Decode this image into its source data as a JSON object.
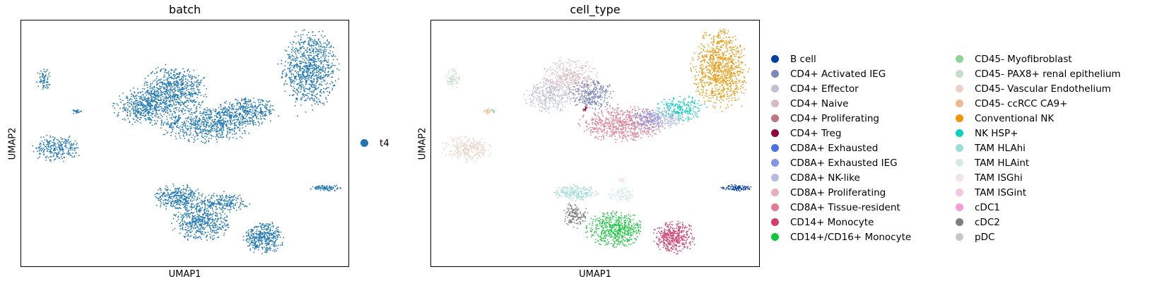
{
  "chart_data": [
    {
      "type": "scatter",
      "title": "batch",
      "xlabel": "UMAP1",
      "ylabel": "UMAP2",
      "ticks": "none",
      "legend": {
        "placement": "right",
        "entries": [
          {
            "label": "t4",
            "color": "#1f77b4"
          }
        ]
      },
      "clusters": [
        {
          "label": "t4",
          "cx": 0.88,
          "cy": 0.8,
          "rx": 0.08,
          "ry": 0.15,
          "n": 900
        },
        {
          "label": "t4",
          "cx": 0.57,
          "cy": 0.58,
          "rx": 0.14,
          "ry": 0.07,
          "n": 700
        },
        {
          "label": "t4",
          "cx": 0.47,
          "cy": 0.72,
          "rx": 0.09,
          "ry": 0.09,
          "n": 650
        },
        {
          "label": "t4",
          "cx": 0.38,
          "cy": 0.65,
          "rx": 0.09,
          "ry": 0.07,
          "n": 500
        },
        {
          "label": "t4",
          "cx": 0.69,
          "cy": 0.63,
          "rx": 0.09,
          "ry": 0.05,
          "n": 380
        },
        {
          "label": "t4",
          "cx": 0.11,
          "cy": 0.48,
          "rx": 0.07,
          "ry": 0.05,
          "n": 260
        },
        {
          "label": "t4",
          "cx": 0.07,
          "cy": 0.76,
          "rx": 0.022,
          "ry": 0.04,
          "n": 70
        },
        {
          "label": "t4",
          "cx": 0.93,
          "cy": 0.32,
          "rx": 0.045,
          "ry": 0.012,
          "n": 90
        },
        {
          "label": "t4",
          "cx": 0.55,
          "cy": 0.18,
          "rx": 0.08,
          "ry": 0.07,
          "n": 500
        },
        {
          "label": "t4",
          "cx": 0.74,
          "cy": 0.12,
          "rx": 0.06,
          "ry": 0.06,
          "n": 400
        },
        {
          "label": "t4",
          "cx": 0.48,
          "cy": 0.28,
          "rx": 0.07,
          "ry": 0.05,
          "n": 350
        },
        {
          "label": "t4",
          "cx": 0.62,
          "cy": 0.26,
          "rx": 0.07,
          "ry": 0.04,
          "n": 220
        },
        {
          "label": "t4",
          "cx": 0.17,
          "cy": 0.63,
          "rx": 0.02,
          "ry": 0.01,
          "n": 25
        }
      ]
    },
    {
      "type": "scatter",
      "title": "cell_type",
      "xlabel": "UMAP1",
      "ylabel": "UMAP2",
      "ticks": "none",
      "legend": {
        "placement": "right",
        "columns": 2,
        "entries": [
          {
            "label": "B cell",
            "color": "#023fa5"
          },
          {
            "label": "CD4+ Activated IEG",
            "color": "#7d87b9"
          },
          {
            "label": "CD4+ Effector",
            "color": "#bec1d4"
          },
          {
            "label": "CD4+ Naive",
            "color": "#d6bcc0"
          },
          {
            "label": "CD4+ Proliferating",
            "color": "#bb7784"
          },
          {
            "label": "CD4+ Treg",
            "color": "#8e063b"
          },
          {
            "label": "CD8A+ Exhausted",
            "color": "#4a6fe3"
          },
          {
            "label": "CD8A+ Exhausted IEG",
            "color": "#8595e1"
          },
          {
            "label": "CD8A+ NK-like",
            "color": "#b5bbe3"
          },
          {
            "label": "CD8A+ Proliferating",
            "color": "#e6afb9"
          },
          {
            "label": "CD8A+ Tissue-resident",
            "color": "#e07b91"
          },
          {
            "label": "CD14+ Monocyte",
            "color": "#d33f6a"
          },
          {
            "label": "CD14+/CD16+ Monocyte",
            "color": "#11c638"
          },
          {
            "label": "CD45- Myofibroblast",
            "color": "#8dd593"
          },
          {
            "label": "CD45- PAX8+ renal epithelium",
            "color": "#c6dec7"
          },
          {
            "label": "CD45- Vascular Endothelium",
            "color": "#ead3c6"
          },
          {
            "label": "CD45- ccRCC CA9+",
            "color": "#f0b98d"
          },
          {
            "label": "Conventional NK",
            "color": "#ef9708"
          },
          {
            "label": "NK HSP+",
            "color": "#0fcfc0"
          },
          {
            "label": "TAM HLAhi",
            "color": "#9cded6"
          },
          {
            "label": "TAM HLAint",
            "color": "#d5eae7"
          },
          {
            "label": "TAM ISGhi",
            "color": "#f3e1eb"
          },
          {
            "label": "TAM ISGint",
            "color": "#f6c4e1"
          },
          {
            "label": "cDC1",
            "color": "#f79cd4"
          },
          {
            "label": "cDC2",
            "color": "#7f7f7f"
          },
          {
            "label": "pDC",
            "color": "#c7c7c7"
          }
        ]
      },
      "clusters": [
        {
          "label": "Conventional NK",
          "cx": 0.88,
          "cy": 0.8,
          "rx": 0.08,
          "ry": 0.15,
          "n": 900
        },
        {
          "label": "NK HSP+",
          "cx": 0.76,
          "cy": 0.64,
          "rx": 0.07,
          "ry": 0.05,
          "n": 220
        },
        {
          "label": "CD8A+ Tissue-resident",
          "cx": 0.58,
          "cy": 0.58,
          "rx": 0.12,
          "ry": 0.07,
          "n": 650
        },
        {
          "label": "CD4+ Naive",
          "cx": 0.42,
          "cy": 0.76,
          "rx": 0.08,
          "ry": 0.08,
          "n": 400
        },
        {
          "label": "CD4+ Effector",
          "cx": 0.36,
          "cy": 0.69,
          "rx": 0.07,
          "ry": 0.06,
          "n": 300
        },
        {
          "label": "CD4+ Activated IEG",
          "cx": 0.49,
          "cy": 0.7,
          "rx": 0.06,
          "ry": 0.06,
          "n": 300
        },
        {
          "label": "CD8A+ Exhausted IEG",
          "cx": 0.66,
          "cy": 0.6,
          "rx": 0.05,
          "ry": 0.04,
          "n": 150
        },
        {
          "label": "CD8A+ NK-like",
          "cx": 0.72,
          "cy": 0.6,
          "rx": 0.05,
          "ry": 0.04,
          "n": 150
        },
        {
          "label": "CD4+ Treg",
          "cx": 0.47,
          "cy": 0.64,
          "rx": 0.01,
          "ry": 0.01,
          "n": 12
        },
        {
          "label": "CD45- Vascular Endothelium",
          "cx": 0.11,
          "cy": 0.48,
          "rx": 0.07,
          "ry": 0.05,
          "n": 260
        },
        {
          "label": "CD45- PAX8+ renal epithelium",
          "cx": 0.07,
          "cy": 0.76,
          "rx": 0.022,
          "ry": 0.04,
          "n": 70
        },
        {
          "label": "CD45- ccRCC CA9+",
          "cx": 0.17,
          "cy": 0.63,
          "rx": 0.02,
          "ry": 0.01,
          "n": 15
        },
        {
          "label": "CD45- Myofibroblast",
          "cx": 0.19,
          "cy": 0.63,
          "rx": 0.008,
          "ry": 0.008,
          "n": 8
        },
        {
          "label": "B cell",
          "cx": 0.93,
          "cy": 0.32,
          "rx": 0.045,
          "ry": 0.012,
          "n": 90
        },
        {
          "label": "CD14+/CD16+ Monocyte",
          "cx": 0.56,
          "cy": 0.15,
          "rx": 0.08,
          "ry": 0.07,
          "n": 500
        },
        {
          "label": "CD14+ Monocyte",
          "cx": 0.74,
          "cy": 0.12,
          "rx": 0.06,
          "ry": 0.06,
          "n": 400
        },
        {
          "label": "cDC2",
          "cx": 0.44,
          "cy": 0.21,
          "rx": 0.035,
          "ry": 0.05,
          "n": 150
        },
        {
          "label": "TAM HLAhi",
          "cx": 0.44,
          "cy": 0.3,
          "rx": 0.06,
          "ry": 0.03,
          "n": 200
        },
        {
          "label": "TAM HLAint",
          "cx": 0.58,
          "cy": 0.29,
          "rx": 0.04,
          "ry": 0.03,
          "n": 100
        },
        {
          "label": "TAM ISGint",
          "cx": 0.58,
          "cy": 0.35,
          "rx": 0.01,
          "ry": 0.01,
          "n": 8
        }
      ]
    }
  ]
}
